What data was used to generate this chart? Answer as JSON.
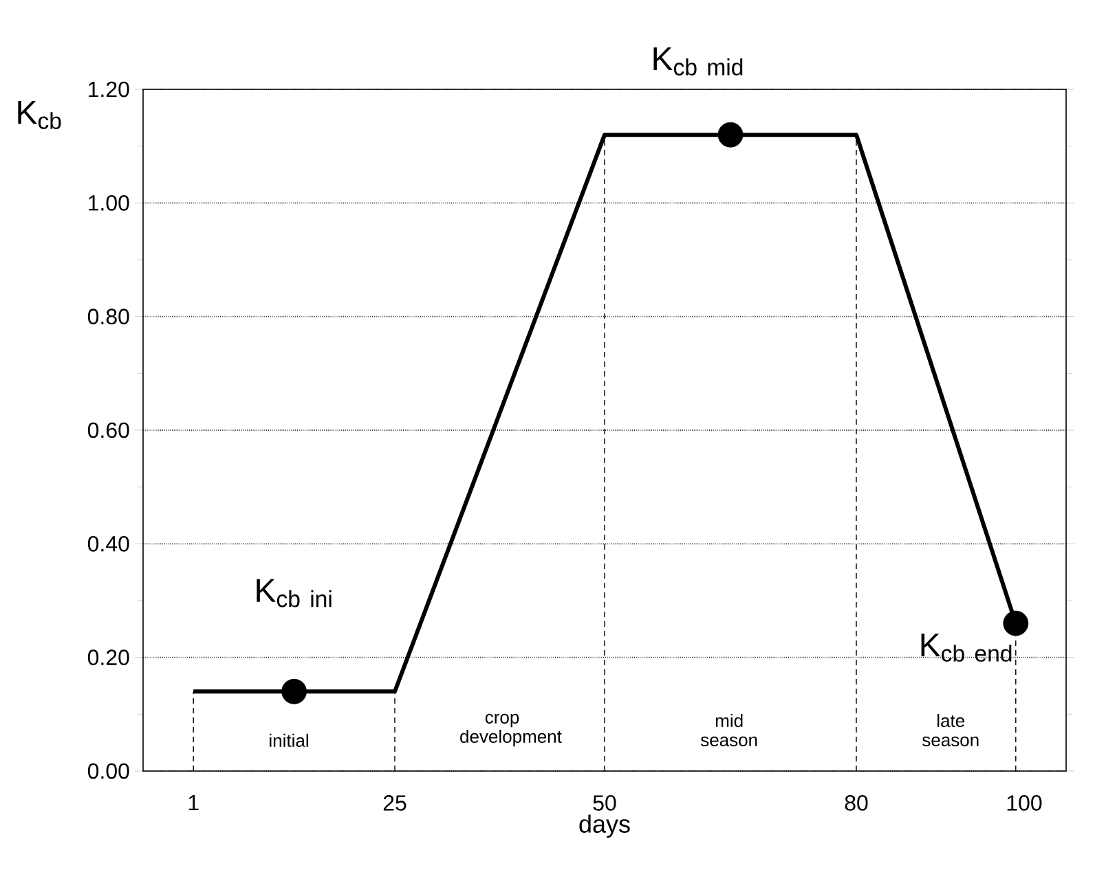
{
  "chart_data": {
    "type": "line",
    "xlabel": "days",
    "ylabel": "K$_{cb}$",
    "xlim": [
      -5,
      105
    ],
    "ylim": [
      0,
      1.2
    ],
    "xticks": [
      1,
      25,
      50,
      80,
      100
    ],
    "yticks": [
      {
        "value": 0,
        "label": "0.00"
      },
      {
        "value": 0.2,
        "label": "0.20"
      },
      {
        "value": 0.4,
        "label": "0.40"
      },
      {
        "value": 0.6,
        "label": "0.60"
      },
      {
        "value": 0.8,
        "label": "0.80"
      },
      {
        "value": 1.0,
        "label": "1.00"
      },
      {
        "value": 1.2,
        "label": "1.20"
      }
    ],
    "grid": "y",
    "series": [
      {
        "color": "#000000",
        "x": [
          1,
          25,
          50,
          80,
          99
        ],
        "values": [
          0.14,
          0.14,
          1.12,
          1.12,
          0.26
        ]
      },
      {
        "type": "scatter",
        "color": "#000000",
        "marker": "circle",
        "x": [
          13,
          65,
          99
        ],
        "values": [
          0.14,
          1.12,
          0.26
        ]
      }
    ],
    "ref_lines": [
      {
        "axis": "x",
        "value": 1,
        "line_style": "dashed"
      },
      {
        "axis": "x",
        "value": 25,
        "line_style": "dashed"
      },
      {
        "axis": "x",
        "value": 50,
        "line_style": "dashed"
      },
      {
        "axis": "x",
        "value": 80,
        "line_style": "dashed"
      },
      {
        "axis": "x",
        "value": 99,
        "line_style": "dashed"
      }
    ],
    "annotations": [
      "initial",
      "crop development",
      "mid season",
      "late season",
      "\\mathrm{K}_{\\mathrm{cb\\ ini}}",
      "\\mathrm{K}_{\\mathrm{cb\\ mid}}",
      "\\mathrm{K}_{\\mathrm{cb\\ end}}"
    ]
  }
}
